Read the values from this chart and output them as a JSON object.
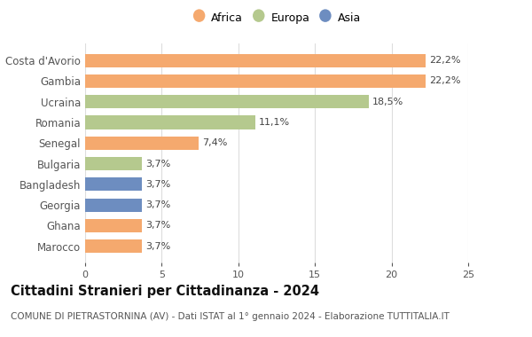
{
  "categories": [
    "Costa d'Avorio",
    "Gambia",
    "Ucraina",
    "Romania",
    "Senegal",
    "Bulgaria",
    "Bangladesh",
    "Georgia",
    "Ghana",
    "Marocco"
  ],
  "values": [
    22.2,
    22.2,
    18.5,
    11.1,
    7.4,
    3.7,
    3.7,
    3.7,
    3.7,
    3.7
  ],
  "continents": [
    "Africa",
    "Africa",
    "Europa",
    "Europa",
    "Africa",
    "Europa",
    "Asia",
    "Asia",
    "Africa",
    "Africa"
  ],
  "labels": [
    "22,2%",
    "22,2%",
    "18,5%",
    "11,1%",
    "7,4%",
    "3,7%",
    "3,7%",
    "3,7%",
    "3,7%",
    "3,7%"
  ],
  "colors": {
    "Africa": "#F5A96E",
    "Europa": "#B5C98E",
    "Asia": "#6D8DC0"
  },
  "legend_order": [
    "Africa",
    "Europa",
    "Asia"
  ],
  "xlim": [
    0,
    25
  ],
  "xticks": [
    0,
    5,
    10,
    15,
    20,
    25
  ],
  "title": "Cittadini Stranieri per Cittadinanza - 2024",
  "subtitle": "COMUNE DI PIETRASTORNINA (AV) - Dati ISTAT al 1° gennaio 2024 - Elaborazione TUTTITALIA.IT",
  "title_fontsize": 10.5,
  "subtitle_fontsize": 7.5,
  "bg_color": "#ffffff",
  "bar_label_fontsize": 8,
  "ytick_fontsize": 8.5,
  "xtick_fontsize": 8
}
